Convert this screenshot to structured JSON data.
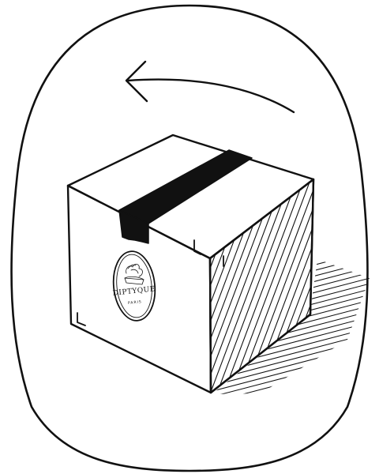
{
  "illustration": {
    "subject": "shipping-box-rotate-hint",
    "arrow_direction": "left",
    "label": {
      "brand": "DIPTYQUE",
      "city": "PARIS"
    },
    "colors": {
      "ink": "#111111",
      "paper": "#ffffff",
      "tape": "#111111"
    }
  }
}
